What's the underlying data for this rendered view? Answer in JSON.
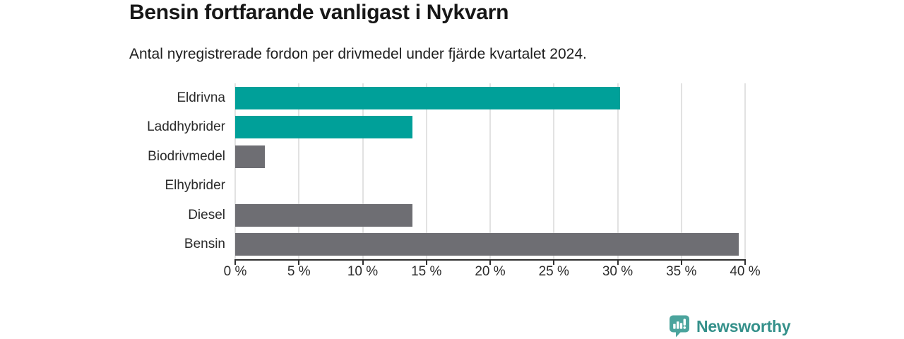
{
  "chart_data": {
    "type": "bar",
    "orientation": "horizontal",
    "title": "Bensin fortfarande vanligast i Nykvarn",
    "subtitle": "Antal nyregistrerade fordon per drivmedel under fjärde kvartalet 2024.",
    "categories": [
      "Eldrivna",
      "Laddhybrider",
      "Biodrivmedel",
      "Elhybrider",
      "Diesel",
      "Bensin"
    ],
    "values": [
      30.2,
      13.9,
      2.3,
      0,
      13.9,
      39.5
    ],
    "value_unit": "%",
    "bar_colors": [
      "#00A099",
      "#00A099",
      "#6E6E73",
      "#6E6E73",
      "#6E6E73",
      "#6E6E73"
    ],
    "xlim": [
      0,
      40
    ],
    "xticks": [
      {
        "value": 0,
        "label": "0 %"
      },
      {
        "value": 5,
        "label": "5 %"
      },
      {
        "value": 10,
        "label": "10 %"
      },
      {
        "value": 15,
        "label": "15 %"
      },
      {
        "value": 20,
        "label": "20 %"
      },
      {
        "value": 25,
        "label": "25 %"
      },
      {
        "value": 30,
        "label": "30 %"
      },
      {
        "value": 35,
        "label": "35 %"
      },
      {
        "value": 40,
        "label": "40 %"
      }
    ],
    "grid": "vertical-gridlines-only",
    "legend": "none",
    "colors": {
      "teal": "#00A099",
      "gray": "#6E6E73",
      "gridline": "#E2E2E2",
      "axis": "#2F2F2F",
      "text": "#2B2B2B"
    }
  },
  "footer": {
    "brand_name": "Newsworthy",
    "brand_text_color": "#34908A",
    "brand_icon_color": "#4BA49D"
  }
}
